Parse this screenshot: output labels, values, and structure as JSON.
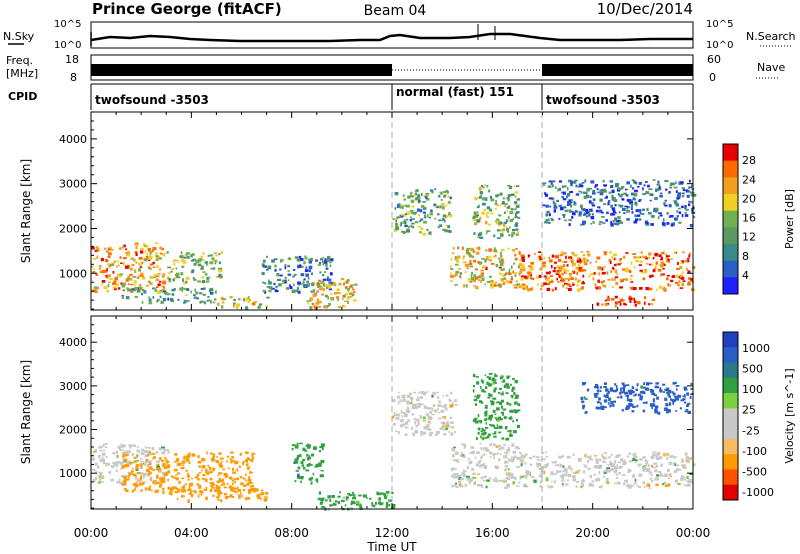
{
  "header": {
    "station": "Prince George (fitACF)",
    "beam": "Beam 04",
    "date": "10/Dec/2014"
  },
  "top_panels": {
    "nsky_label": "N.Sky",
    "nsky_tick_top": "10^5",
    "nsky_tick_bottom": "10^0",
    "nsearch_label": "N.Search",
    "freq_label_line1": "Freq.",
    "freq_label_line2": "[MHz]",
    "freq_ticks": [
      "18",
      "8"
    ],
    "nave_ticks": [
      "60",
      "0"
    ],
    "nave_label": "Nave",
    "cpid_label": "CPID",
    "cpid_segments": [
      {
        "label": "twofsound -3503",
        "start_hour": 0,
        "end_hour": 12
      },
      {
        "label": "normal (fast) 151",
        "start_hour": 12,
        "end_hour": 18
      },
      {
        "label": "twofsound -3503",
        "start_hour": 18,
        "end_hour": 24
      }
    ]
  },
  "colors": {
    "power_scale": [
      "#2020ff",
      "#2a5fc8",
      "#3a8a8a",
      "#5a9a60",
      "#70b050",
      "#f0d020",
      "#f0a020",
      "#ff6a00",
      "#e80000"
    ],
    "velocity_scale": [
      "#e00000",
      "#ff5000",
      "#ff9a00",
      "#f5bd60",
      "#c8c8c8",
      "#c8c8c8",
      "#7ad040",
      "#30a040",
      "#2a7a8a",
      "#2a5fc8",
      "#2040c0"
    ]
  },
  "chart_data": [
    {
      "type": "heatmap",
      "title": "",
      "xlabel": "Time UT",
      "ylabel": "Slant Range [km]",
      "colorbar_label": "Power [dB]",
      "x_ticks": [
        "00:00",
        "04:00",
        "08:00",
        "12:00",
        "16:00",
        "20:00",
        "00:00"
      ],
      "x_range_hours": [
        0,
        24
      ],
      "y_ticks": [
        1000,
        2000,
        3000,
        4000
      ],
      "ylim": [
        180,
        4600
      ],
      "colorbar_ticks": [
        "4",
        "8",
        "12",
        "16",
        "20",
        "24",
        "28"
      ],
      "colorbar_range": [
        0,
        30
      ],
      "regions": [
        {
          "t0": 0.0,
          "t1": 2.9,
          "r0": 600,
          "r1": 1700,
          "value": 22
        },
        {
          "t0": 1.2,
          "t1": 5.0,
          "r0": 350,
          "r1": 700,
          "value": 10
        },
        {
          "t0": 3.0,
          "t1": 5.2,
          "r0": 800,
          "r1": 1500,
          "value": 14
        },
        {
          "t0": 5.0,
          "t1": 7.0,
          "r0": 250,
          "r1": 500,
          "value": 18
        },
        {
          "t0": 6.8,
          "t1": 9.6,
          "r0": 600,
          "r1": 1400,
          "value": 8
        },
        {
          "t0": 8.5,
          "t1": 10.5,
          "r0": 250,
          "r1": 900,
          "value": 20
        },
        {
          "t0": 12.0,
          "t1": 14.3,
          "r0": 1900,
          "r1": 2900,
          "value": 12
        },
        {
          "t0": 14.3,
          "t1": 17.2,
          "r0": 700,
          "r1": 1600,
          "value": 20
        },
        {
          "t0": 15.2,
          "t1": 17.0,
          "r0": 1800,
          "r1": 3000,
          "value": 14
        },
        {
          "t0": 17.0,
          "t1": 24.0,
          "r0": 650,
          "r1": 1500,
          "value": 24
        },
        {
          "t0": 20.0,
          "t1": 22.5,
          "r0": 300,
          "r1": 500,
          "value": 28
        },
        {
          "t0": 18.0,
          "t1": 24.0,
          "r0": 2100,
          "r1": 3100,
          "value": 6
        }
      ]
    },
    {
      "type": "heatmap",
      "title": "",
      "xlabel": "Time UT",
      "ylabel": "Slant Range [km]",
      "colorbar_label": "Velocity [m s^-1]",
      "x_ticks": [
        "00:00",
        "04:00",
        "08:00",
        "12:00",
        "16:00",
        "20:00",
        "00:00"
      ],
      "x_range_hours": [
        0,
        24
      ],
      "y_ticks": [
        1000,
        2000,
        3000,
        4000
      ],
      "ylim": [
        180,
        4600
      ],
      "colorbar_ticks": [
        "1000",
        "500",
        "100",
        "25",
        "-25",
        "-100",
        "-500",
        "-1000"
      ],
      "regions": [
        {
          "t0": 0.0,
          "t1": 3.0,
          "r0": 800,
          "r1": 1700,
          "value": 0
        },
        {
          "t0": 1.2,
          "t1": 6.5,
          "r0": 600,
          "r1": 1500,
          "value": -300
        },
        {
          "t0": 3.0,
          "t1": 7.0,
          "r0": 400,
          "r1": 700,
          "value": -150
        },
        {
          "t0": 8.0,
          "t1": 9.2,
          "r0": 800,
          "r1": 1700,
          "value": 400
        },
        {
          "t0": 9.0,
          "t1": 12.0,
          "r0": 200,
          "r1": 600,
          "value": 150
        },
        {
          "t0": 12.0,
          "t1": 14.5,
          "r0": 1900,
          "r1": 2900,
          "value": 0
        },
        {
          "t0": 14.3,
          "t1": 17.0,
          "r0": 700,
          "r1": 1700,
          "value": 0
        },
        {
          "t0": 15.2,
          "t1": 17.0,
          "r0": 1800,
          "r1": 3300,
          "value": 200
        },
        {
          "t0": 17.0,
          "t1": 24.0,
          "r0": 700,
          "r1": 1500,
          "value": 0
        },
        {
          "t0": 19.5,
          "t1": 24.0,
          "r0": 2400,
          "r1": 3100,
          "value": 600
        }
      ]
    }
  ]
}
